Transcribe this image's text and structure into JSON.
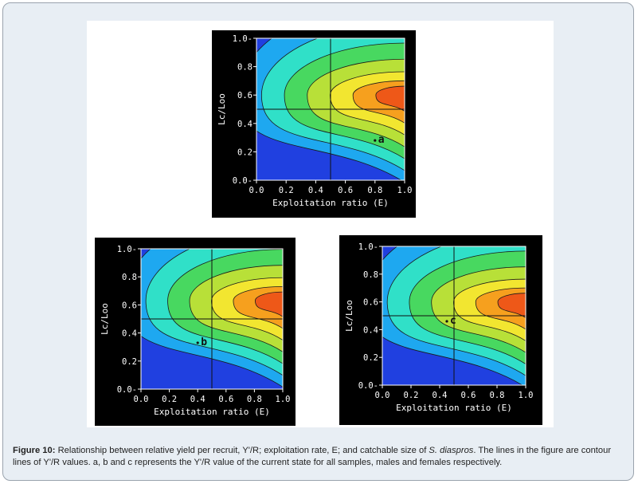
{
  "figure": {
    "caption_label": "Figure 10:",
    "caption_part1": " Relationship between relative yield per recruit, Y'/R; exploitation rate, E; and catchable size of ",
    "caption_species": "S. diaspros",
    "caption_part2": ". The lines in the figure are contour lines of Y'/R values. a, b and c represents the Y'/R value of the current state for all samples, males and females respectively."
  },
  "chart_data": [
    {
      "type": "heatmap",
      "xlabel": "Exploitation ratio (E)",
      "ylabel": "Lc/Loo",
      "xlim": [
        0,
        1
      ],
      "ylim": [
        0,
        1
      ],
      "xticks": [
        "0.0",
        "0.2",
        "0.4",
        "0.6",
        "0.8",
        "1.0"
      ],
      "yticks": [
        "0.0-",
        "0.2",
        "0.4",
        "0.6",
        "0.8",
        "1.0-"
      ],
      "crosshair": {
        "x": 0.5,
        "y": 0.5
      },
      "optimum": {
        "x": 1.0,
        "y": 0.6
      },
      "colors": [
        "#2040e0",
        "#1ea8f0",
        "#30e0c8",
        "#48d860",
        "#b8e038",
        "#f2e630",
        "#f6a01e",
        "#ee5818"
      ],
      "marker": {
        "label": "a",
        "x": 0.8,
        "y": 0.28
      }
    },
    {
      "type": "heatmap",
      "xlabel": "Exploitation ratio (E)",
      "ylabel": "Lc/Loo",
      "xlim": [
        0,
        1
      ],
      "ylim": [
        0,
        1
      ],
      "xticks": [
        "0.0",
        "0.2",
        "0.4",
        "0.6",
        "0.8",
        "1.0"
      ],
      "yticks": [
        "0.0-",
        "0.2",
        "0.4",
        "0.6",
        "0.8",
        "1.0-"
      ],
      "crosshair": {
        "x": 0.5,
        "y": 0.5
      },
      "optimum": {
        "x": 1.0,
        "y": 0.63
      },
      "colors": [
        "#2040e0",
        "#1ea8f0",
        "#30e0c8",
        "#48d860",
        "#b8e038",
        "#f2e630",
        "#f6a01e",
        "#ee5818"
      ],
      "marker": {
        "label": "b",
        "x": 0.4,
        "y": 0.33
      }
    },
    {
      "type": "heatmap",
      "xlabel": "Exploitation ratio (E)",
      "ylabel": "Lc/Loo",
      "xlim": [
        0,
        1
      ],
      "ylim": [
        0,
        1
      ],
      "xticks": [
        "0.0",
        "0.2",
        "0.4",
        "0.6",
        "0.8",
        "1.0"
      ],
      "yticks": [
        "0.0-",
        "0.2",
        "0.4",
        "0.6",
        "0.8",
        "1.0-"
      ],
      "crosshair": {
        "x": 0.5,
        "y": 0.5
      },
      "optimum": {
        "x": 1.0,
        "y": 0.6
      },
      "colors": [
        "#2040e0",
        "#1ea8f0",
        "#30e0c8",
        "#48d860",
        "#b8e038",
        "#f2e630",
        "#f6a01e",
        "#ee5818"
      ],
      "marker": {
        "label": "c",
        "x": 0.45,
        "y": 0.46
      }
    }
  ]
}
